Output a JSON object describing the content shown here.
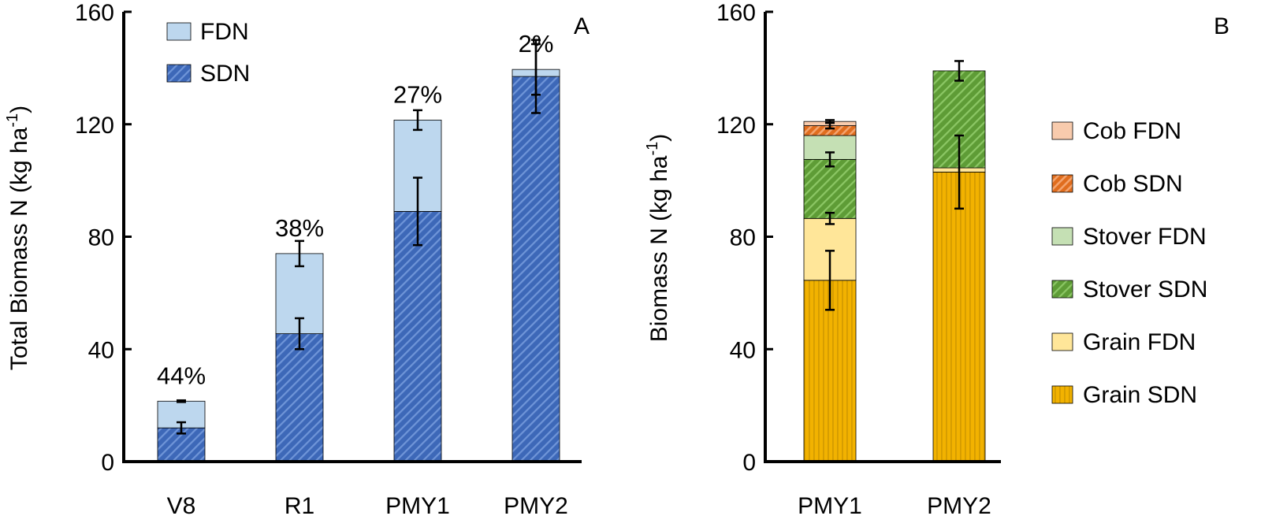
{
  "chart_data": [
    {
      "panel": "A",
      "type": "bar",
      "stacked": true,
      "title": "",
      "panel_label": "A",
      "categories": [
        "V8",
        "R1",
        "PMY1",
        "PMY2"
      ],
      "ylabel_main": "Total Biomass N (kg ha",
      "ylabel_sup": "-1",
      "ylabel_close": ")",
      "ylim": [
        0,
        160
      ],
      "yticks": [
        0,
        40,
        80,
        120,
        160
      ],
      "series": [
        {
          "name": "SDN",
          "values": [
            12,
            45.5,
            89,
            137
          ],
          "errors": [
            2,
            5.5,
            12,
            13
          ],
          "color": "#4472c4",
          "pattern": "diag-blue"
        },
        {
          "name": "FDN",
          "values": [
            9.5,
            28.5,
            32.5,
            2.5
          ],
          "errors": [
            0.3,
            4.5,
            3.5,
            9
          ],
          "color": "#bdd7ee",
          "pattern": "solid"
        }
      ],
      "percent_labels": [
        "44%",
        "38%",
        "27%",
        "2%"
      ],
      "legend": [
        "FDN",
        "SDN"
      ],
      "legend_position": "top-left"
    },
    {
      "panel": "B",
      "type": "bar",
      "stacked": true,
      "title": "",
      "panel_label": "B",
      "categories": [
        "PMY1",
        "PMY2"
      ],
      "ylabel_main": "Biomass N  (kg ha",
      "ylabel_sup": "-1",
      "ylabel_close": ")",
      "ylim": [
        0,
        160
      ],
      "yticks": [
        0,
        40,
        80,
        120,
        160
      ],
      "series": [
        {
          "name": "Grain SDN",
          "values": [
            64.5,
            103
          ],
          "errors": [
            10.5,
            13
          ],
          "color": "#f5b800",
          "pattern": "vert-gold"
        },
        {
          "name": "Grain FDN",
          "values": [
            22,
            1.5
          ],
          "errors": [
            2,
            0
          ],
          "color": "#ffe699",
          "pattern": "solid"
        },
        {
          "name": "Stover SDN",
          "values": [
            21,
            34.5
          ],
          "errors": [
            2.5,
            3.5
          ],
          "color": "#70ad47",
          "pattern": "diag-green"
        },
        {
          "name": "Stover FDN",
          "values": [
            8.5,
            0
          ],
          "errors": [
            0,
            0
          ],
          "color": "#c5e0b4",
          "pattern": "solid"
        },
        {
          "name": "Cob SDN",
          "values": [
            3.5,
            0
          ],
          "errors": [
            1,
            0
          ],
          "color": "#ed7d31",
          "pattern": "diag-orange"
        },
        {
          "name": "Cob FDN",
          "values": [
            1.5,
            0
          ],
          "errors": [
            0.5,
            0
          ],
          "color": "#f8cbad",
          "pattern": "solid"
        }
      ],
      "legend": [
        "Cob FDN",
        "Cob SDN",
        "Stover FDN",
        "Stover SDN",
        "Grain FDN",
        "Grain SDN"
      ],
      "legend_position": "right"
    }
  ]
}
